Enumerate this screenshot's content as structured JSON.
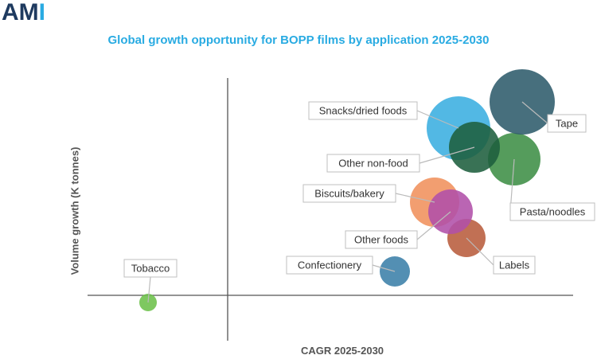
{
  "logo": {
    "main": "AM",
    "accent": "I"
  },
  "colors": {
    "title": "#29abe2",
    "logo": "#1e3a5f",
    "axis": "#555555"
  },
  "chart_data": {
    "type": "scatter",
    "bubble": true,
    "title": "Global growth opportunity for BOPP films by application 2025-2030",
    "xlabel": "CAGR 2025-2030",
    "ylabel": "Volume growth (K tonnes)",
    "axis_ticks": "none",
    "grid": false,
    "legend": "none",
    "points": [
      {
        "label": "Tobacco",
        "x": -0.1,
        "y": -0.03,
        "size": 0.11,
        "color": "#6cc04a"
      },
      {
        "label": "Confectionery",
        "x": 0.21,
        "y": 0.1,
        "size": 0.19,
        "color": "#3b7fa8"
      },
      {
        "label": "Labels",
        "x": 0.3,
        "y": 0.24,
        "size": 0.24,
        "color": "#b85c3c"
      },
      {
        "label": "Biscuits/bakery",
        "x": 0.26,
        "y": 0.39,
        "size": 0.31,
        "color": "#f0915c"
      },
      {
        "label": "Other foods",
        "x": 0.28,
        "y": 0.35,
        "size": 0.28,
        "color": "#b050a8"
      },
      {
        "label": "Pasta/noodles",
        "x": 0.36,
        "y": 0.57,
        "size": 0.33,
        "color": "#3e8e45"
      },
      {
        "label": "Snacks/dried foods",
        "x": 0.29,
        "y": 0.7,
        "size": 0.4,
        "color": "#3aaee0"
      },
      {
        "label": "Tape",
        "x": 0.37,
        "y": 0.81,
        "size": 0.41,
        "color": "#2d5b6b"
      },
      {
        "label": "Other non-food",
        "x": 0.31,
        "y": 0.62,
        "size": 0.32,
        "color": "#1e5e3d"
      }
    ]
  }
}
